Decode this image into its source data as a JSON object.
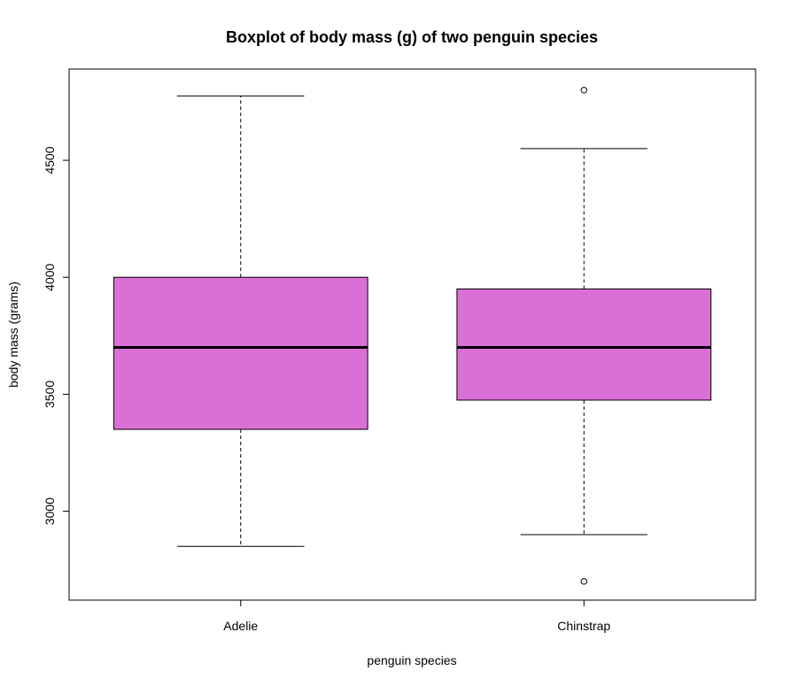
{
  "chart_data": {
    "type": "boxplot",
    "title": "Boxplot of body mass (g) of two penguin species",
    "xlabel": "penguin species",
    "ylabel": "body mass (grams)",
    "categories": [
      "Adelie",
      "Chinstrap"
    ],
    "ylim": [
      2620,
      4890
    ],
    "yticks": [
      3000,
      3500,
      4000,
      4500
    ],
    "ytick_labels": [
      "3000",
      "3500",
      "4000",
      "4500"
    ],
    "boxes": [
      {
        "category": "Adelie",
        "whisker_low": 2850,
        "q1": 3350,
        "median": 3700,
        "q3": 4000,
        "whisker_high": 4775,
        "outliers": []
      },
      {
        "category": "Chinstrap",
        "whisker_low": 2900,
        "q1": 3475,
        "median": 3700,
        "q3": 3950,
        "whisker_high": 4550,
        "outliers": [
          2700,
          4800
        ]
      }
    ],
    "box_color": "#DA70D6",
    "grid": false,
    "legend": "none"
  }
}
